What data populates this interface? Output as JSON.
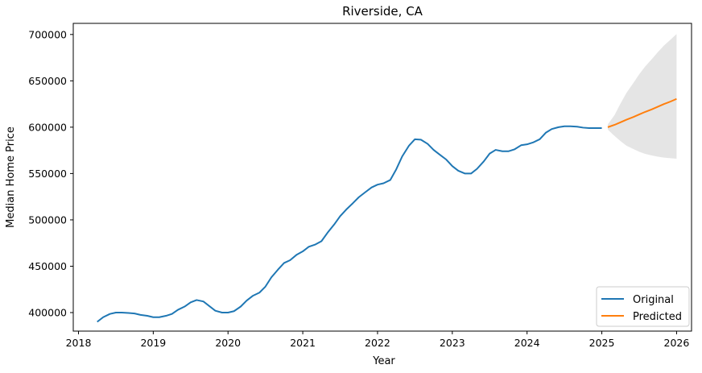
{
  "chart_data": {
    "type": "line",
    "title": "Riverside, CA",
    "xlabel": "Year",
    "ylabel": "Median Home Price",
    "xlim": [
      2017.93,
      2026.2
    ],
    "ylim": [
      380000,
      712000
    ],
    "x_ticks": [
      2018,
      2019,
      2020,
      2021,
      2022,
      2023,
      2024,
      2025,
      2026
    ],
    "y_ticks": [
      400000,
      450000,
      500000,
      550000,
      600000,
      650000,
      700000
    ],
    "y_tick_labels": [
      "400000",
      "450000",
      "500000",
      "550000",
      "600000",
      "650000",
      "700000"
    ],
    "x_tick_labels": [
      "2018",
      "2019",
      "2020",
      "2021",
      "2022",
      "2023",
      "2024",
      "2025",
      "2026"
    ],
    "legend_position": "lower-right",
    "grid": false,
    "series": [
      {
        "name": "Original",
        "color": "#1f77b4",
        "x": [
          2018.25,
          2018.33,
          2018.42,
          2018.5,
          2018.58,
          2018.67,
          2018.75,
          2018.83,
          2018.92,
          2019.0,
          2019.08,
          2019.17,
          2019.25,
          2019.33,
          2019.42,
          2019.5,
          2019.58,
          2019.67,
          2019.75,
          2019.83,
          2019.92,
          2020.0,
          2020.08,
          2020.17,
          2020.25,
          2020.33,
          2020.42,
          2020.5,
          2020.58,
          2020.67,
          2020.75,
          2020.83,
          2020.92,
          2021.0,
          2021.08,
          2021.17,
          2021.25,
          2021.33,
          2021.42,
          2021.5,
          2021.58,
          2021.67,
          2021.75,
          2021.83,
          2021.92,
          2022.0,
          2022.08,
          2022.17,
          2022.25,
          2022.33,
          2022.42,
          2022.5,
          2022.58,
          2022.67,
          2022.75,
          2022.83,
          2022.92,
          2023.0,
          2023.08,
          2023.17,
          2023.25,
          2023.33,
          2023.42,
          2023.5,
          2023.58,
          2023.67,
          2023.75,
          2023.83,
          2023.92,
          2024.0,
          2024.08,
          2024.17,
          2024.25,
          2024.33,
          2024.42,
          2024.5,
          2024.58,
          2024.67,
          2024.75,
          2024.83,
          2024.92,
          2025.0
        ],
        "y": [
          390000,
          395000,
          398500,
          400000,
          400000,
          399500,
          399000,
          397500,
          396500,
          395000,
          395000,
          396500,
          398500,
          403000,
          406500,
          411000,
          413500,
          412000,
          407000,
          402000,
          400000,
          400000,
          401500,
          406500,
          413000,
          418000,
          421500,
          428000,
          438000,
          446500,
          453500,
          456500,
          462500,
          466000,
          471000,
          473500,
          477000,
          486000,
          495000,
          504000,
          511000,
          518000,
          524500,
          529500,
          535000,
          538000,
          539500,
          543000,
          554500,
          568500,
          580000,
          587000,
          586500,
          582000,
          575500,
          570500,
          565000,
          558000,
          553000,
          550000,
          550000,
          555000,
          563000,
          571500,
          575500,
          574000,
          574000,
          576000,
          580500,
          581500,
          583500,
          587000,
          594000,
          598000,
          600000,
          601000,
          601000,
          600500,
          599500,
          599000,
          599000,
          599000
        ]
      },
      {
        "name": "Predicted",
        "color": "#ff7f0e",
        "x": [
          2025.08,
          2025.17,
          2025.25,
          2025.33,
          2025.42,
          2025.5,
          2025.58,
          2025.67,
          2025.75,
          2025.83,
          2025.92,
          2026.0
        ],
        "y": [
          600000,
          602500,
          605300,
          608100,
          610900,
          613700,
          616500,
          619300,
          622100,
          624900,
          627700,
          630500
        ],
        "upper": [
          603000,
          613000,
          625500,
          637000,
          647500,
          657000,
          665500,
          673500,
          681000,
          688000,
          694500,
          700500
        ],
        "lower": [
          597500,
          590500,
          585000,
          580000,
          576500,
          573500,
          571200,
          569500,
          568200,
          567200,
          566500,
          566000
        ],
        "band_color": "#d3d3d3"
      }
    ]
  }
}
